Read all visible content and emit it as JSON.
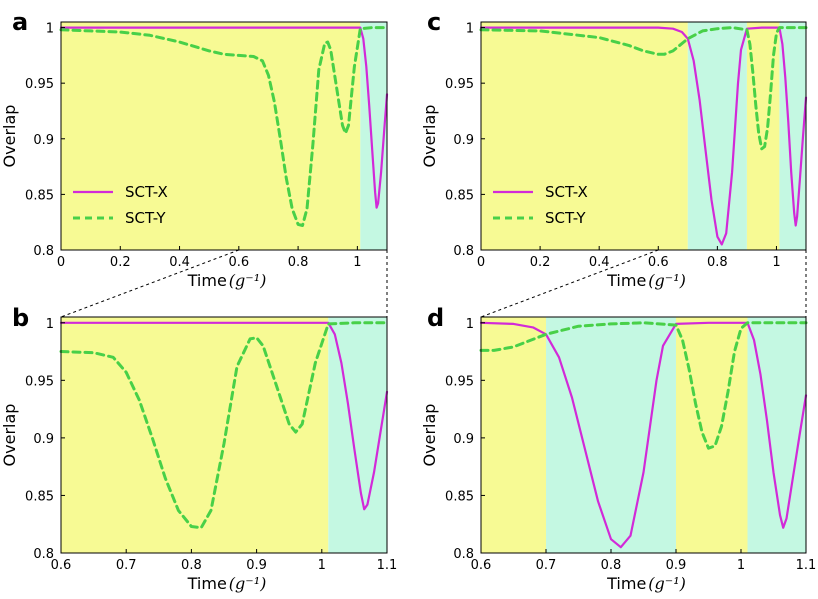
{
  "colors": {
    "yellow_bg": "#f7fa94",
    "cyan_bg": "#c4f8e2",
    "sct_x": "#d22ad8",
    "sct_y": "#48d048"
  },
  "chart_data": [
    {
      "panel": "a",
      "type": "line",
      "xlabel": "Time",
      "xunit": "(g⁻¹)",
      "ylabel": "Overlap",
      "xlim": [
        0,
        1.1
      ],
      "ylim": [
        0.8,
        1.005
      ],
      "xticks": [
        "0",
        "0.2",
        "0.4",
        "0.6",
        "0.8",
        "1"
      ],
      "yticks": [
        "0.8",
        "0.85",
        "0.9",
        "0.95",
        "1"
      ],
      "legend": [
        "SCT-X",
        "SCT-Y"
      ],
      "legend_position": "lower-left",
      "regions": [
        {
          "from": 0,
          "to": 1.01,
          "color": "yellow"
        },
        {
          "from": 1.01,
          "to": 1.1,
          "color": "cyan"
        }
      ],
      "series": [
        {
          "name": "SCT-X",
          "style": "solid",
          "x": [
            0,
            1.0,
            1.01,
            1.02,
            1.03,
            1.04,
            1.05,
            1.06,
            1.065,
            1.07,
            1.08,
            1.09,
            1.1
          ],
          "y": [
            1.0,
            1.0,
            1.0,
            0.99,
            0.965,
            0.93,
            0.89,
            0.852,
            0.838,
            0.842,
            0.87,
            0.905,
            0.94
          ]
        },
        {
          "name": "SCT-Y",
          "style": "dashed",
          "x": [
            0,
            0.1,
            0.2,
            0.3,
            0.4,
            0.5,
            0.55,
            0.6,
            0.65,
            0.68,
            0.7,
            0.72,
            0.74,
            0.76,
            0.78,
            0.8,
            0.815,
            0.83,
            0.85,
            0.87,
            0.89,
            0.9,
            0.91,
            0.93,
            0.95,
            0.96,
            0.97,
            0.99,
            1.01,
            1.05,
            1.1
          ],
          "y": [
            0.998,
            0.997,
            0.996,
            0.993,
            0.987,
            0.979,
            0.976,
            0.975,
            0.974,
            0.97,
            0.957,
            0.933,
            0.9,
            0.865,
            0.837,
            0.823,
            0.822,
            0.837,
            0.895,
            0.962,
            0.986,
            0.987,
            0.98,
            0.946,
            0.912,
            0.905,
            0.912,
            0.965,
            0.999,
            1.0,
            1.0
          ]
        }
      ]
    },
    {
      "panel": "b",
      "type": "line",
      "xlabel": "Time",
      "xunit": "(g⁻¹)",
      "ylabel": "Overlap",
      "xlim": [
        0.6,
        1.1
      ],
      "ylim": [
        0.8,
        1.005
      ],
      "xticks": [
        "0.6",
        "0.7",
        "0.8",
        "0.9",
        "1",
        "1.1"
      ],
      "yticks": [
        "0.8",
        "0.85",
        "0.9",
        "0.95",
        "1"
      ],
      "regions": [
        {
          "from": 0.6,
          "to": 1.01,
          "color": "yellow"
        },
        {
          "from": 1.01,
          "to": 1.1,
          "color": "cyan"
        }
      ],
      "series": [
        {
          "name": "SCT-X",
          "style": "solid",
          "x": [
            0.6,
            1.0,
            1.01,
            1.02,
            1.03,
            1.04,
            1.05,
            1.06,
            1.065,
            1.07,
            1.08,
            1.09,
            1.1
          ],
          "y": [
            1.0,
            1.0,
            1.0,
            0.99,
            0.965,
            0.93,
            0.89,
            0.852,
            0.838,
            0.842,
            0.87,
            0.905,
            0.94
          ]
        },
        {
          "name": "SCT-Y",
          "style": "dashed",
          "x": [
            0.6,
            0.65,
            0.68,
            0.7,
            0.72,
            0.74,
            0.76,
            0.78,
            0.8,
            0.815,
            0.83,
            0.85,
            0.87,
            0.89,
            0.9,
            0.91,
            0.93,
            0.95,
            0.96,
            0.97,
            0.99,
            1.01,
            1.05,
            1.1
          ],
          "y": [
            0.975,
            0.974,
            0.97,
            0.957,
            0.933,
            0.9,
            0.865,
            0.837,
            0.823,
            0.822,
            0.837,
            0.895,
            0.962,
            0.986,
            0.987,
            0.98,
            0.946,
            0.912,
            0.905,
            0.912,
            0.965,
            0.999,
            1.0,
            1.0
          ]
        }
      ]
    },
    {
      "panel": "c",
      "type": "line",
      "xlabel": "Time",
      "xunit": "(g⁻¹)",
      "ylabel": "Overlap",
      "xlim": [
        0,
        1.1
      ],
      "ylim": [
        0.8,
        1.005
      ],
      "xticks": [
        "0",
        "0.2",
        "0.4",
        "0.6",
        "0.8",
        "1"
      ],
      "yticks": [
        "0.8",
        "0.85",
        "0.9",
        "0.95",
        "1"
      ],
      "legend": [
        "SCT-X",
        "SCT-Y"
      ],
      "legend_position": "lower-left",
      "regions": [
        {
          "from": 0,
          "to": 0.7,
          "color": "yellow"
        },
        {
          "from": 0.7,
          "to": 0.9,
          "color": "cyan"
        },
        {
          "from": 0.9,
          "to": 1.01,
          "color": "yellow"
        },
        {
          "from": 1.01,
          "to": 1.1,
          "color": "cyan"
        }
      ],
      "series": [
        {
          "name": "SCT-X",
          "style": "solid",
          "x": [
            0,
            0.6,
            0.65,
            0.68,
            0.7,
            0.72,
            0.74,
            0.76,
            0.78,
            0.8,
            0.815,
            0.83,
            0.85,
            0.87,
            0.88,
            0.9,
            0.95,
            1.0,
            1.01,
            1.02,
            1.03,
            1.04,
            1.05,
            1.06,
            1.065,
            1.07,
            1.08,
            1.09,
            1.1
          ],
          "y": [
            1.0,
            1.0,
            0.999,
            0.996,
            0.99,
            0.97,
            0.935,
            0.89,
            0.845,
            0.812,
            0.805,
            0.815,
            0.87,
            0.95,
            0.98,
            0.999,
            1.0,
            1.0,
            1.0,
            0.985,
            0.955,
            0.915,
            0.87,
            0.833,
            0.822,
            0.83,
            0.866,
            0.902,
            0.937
          ]
        },
        {
          "name": "SCT-Y",
          "style": "dashed",
          "x": [
            0,
            0.2,
            0.4,
            0.5,
            0.55,
            0.6,
            0.62,
            0.65,
            0.7,
            0.75,
            0.8,
            0.85,
            0.9,
            0.91,
            0.92,
            0.93,
            0.94,
            0.95,
            0.96,
            0.97,
            0.98,
            0.99,
            1.0,
            1.01,
            1.05,
            1.1
          ],
          "y": [
            0.998,
            0.997,
            0.991,
            0.984,
            0.979,
            0.976,
            0.976,
            0.979,
            0.99,
            0.997,
            0.999,
            1.0,
            0.998,
            0.985,
            0.96,
            0.93,
            0.905,
            0.891,
            0.893,
            0.91,
            0.94,
            0.975,
            0.995,
            1.0,
            1.0,
            1.0
          ]
        }
      ]
    },
    {
      "panel": "d",
      "type": "line",
      "xlabel": "Time",
      "xunit": "(g⁻¹)",
      "ylabel": "Overlap",
      "xlim": [
        0.6,
        1.1
      ],
      "ylim": [
        0.8,
        1.005
      ],
      "xticks": [
        "0.6",
        "0.7",
        "0.8",
        "0.9",
        "1",
        "1.1"
      ],
      "yticks": [
        "0.8",
        "0.85",
        "0.9",
        "0.95",
        "1"
      ],
      "regions": [
        {
          "from": 0.6,
          "to": 0.7,
          "color": "yellow"
        },
        {
          "from": 0.7,
          "to": 0.9,
          "color": "cyan"
        },
        {
          "from": 0.9,
          "to": 1.01,
          "color": "yellow"
        },
        {
          "from": 1.01,
          "to": 1.1,
          "color": "cyan"
        }
      ],
      "series": [
        {
          "name": "SCT-X",
          "style": "solid",
          "x": [
            0.6,
            0.65,
            0.68,
            0.7,
            0.72,
            0.74,
            0.76,
            0.78,
            0.8,
            0.815,
            0.83,
            0.85,
            0.87,
            0.88,
            0.9,
            0.95,
            1.0,
            1.01,
            1.02,
            1.03,
            1.04,
            1.05,
            1.06,
            1.065,
            1.07,
            1.08,
            1.09,
            1.1
          ],
          "y": [
            1.0,
            0.999,
            0.996,
            0.99,
            0.97,
            0.935,
            0.89,
            0.845,
            0.812,
            0.805,
            0.815,
            0.87,
            0.95,
            0.98,
            0.999,
            1.0,
            1.0,
            1.0,
            0.985,
            0.955,
            0.915,
            0.87,
            0.833,
            0.822,
            0.83,
            0.866,
            0.902,
            0.937
          ]
        },
        {
          "name": "SCT-Y",
          "style": "dashed",
          "x": [
            0.6,
            0.62,
            0.65,
            0.7,
            0.75,
            0.8,
            0.85,
            0.9,
            0.91,
            0.92,
            0.93,
            0.94,
            0.95,
            0.96,
            0.97,
            0.98,
            0.99,
            1.0,
            1.01,
            1.05,
            1.1
          ],
          "y": [
            0.976,
            0.976,
            0.979,
            0.99,
            0.997,
            0.999,
            1.0,
            0.998,
            0.985,
            0.96,
            0.93,
            0.905,
            0.891,
            0.893,
            0.91,
            0.94,
            0.975,
            0.995,
            1.0,
            1.0,
            1.0
          ]
        }
      ]
    }
  ]
}
